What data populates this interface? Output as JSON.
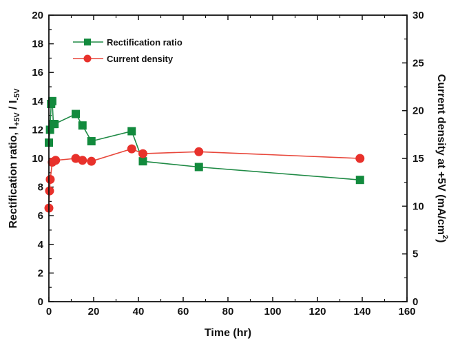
{
  "chart_data": {
    "type": "line",
    "title": "",
    "xlabel": "Time (hr)",
    "ylabel_left": {
      "text": "Rectification ratio, I",
      "sub1": "+5V",
      "mid": " / I",
      "sub2": "-5V"
    },
    "ylabel_right": {
      "text": "Current density at +5V (mA/cm",
      "sup": "2",
      "end": ")"
    },
    "xlim": [
      0,
      160
    ],
    "ylim_left": [
      0,
      20
    ],
    "ylim_right": [
      0,
      30
    ],
    "x_ticks": [
      0,
      20,
      40,
      60,
      80,
      100,
      120,
      140,
      160
    ],
    "y_ticks_left": [
      0,
      2,
      4,
      6,
      8,
      10,
      12,
      14,
      16,
      18,
      20
    ],
    "y_ticks_right": [
      0,
      5,
      10,
      15,
      20,
      25,
      30
    ],
    "grid": false,
    "legend_position": "top-left",
    "series": [
      {
        "name": "Rectification ratio",
        "axis": "left",
        "marker": "square",
        "color": "#1f8a45",
        "marker_color": "#128a3d",
        "points": [
          [
            0,
            11.1
          ],
          [
            0.5,
            12.0
          ],
          [
            1,
            13.8
          ],
          [
            1.5,
            14.0
          ],
          [
            2,
            12.4
          ],
          [
            2.5,
            12.4
          ],
          [
            12,
            13.1
          ],
          [
            15,
            12.3
          ],
          [
            19,
            11.2
          ],
          [
            37,
            11.9
          ],
          [
            42,
            9.8
          ],
          [
            67,
            9.4
          ],
          [
            139,
            8.5
          ]
        ]
      },
      {
        "name": "Current density",
        "axis": "right",
        "marker": "circle",
        "color": "#e8473b",
        "marker_color": "#e8312b",
        "points": [
          [
            0,
            9.8
          ],
          [
            0.3,
            11.6
          ],
          [
            0.6,
            12.8
          ],
          [
            1.5,
            14.6
          ],
          [
            3,
            14.8
          ],
          [
            12,
            15.0
          ],
          [
            15,
            14.8
          ],
          [
            19,
            14.7
          ],
          [
            37,
            16.0
          ],
          [
            42,
            15.5
          ],
          [
            67,
            15.7
          ],
          [
            139,
            15.0
          ]
        ]
      }
    ]
  }
}
